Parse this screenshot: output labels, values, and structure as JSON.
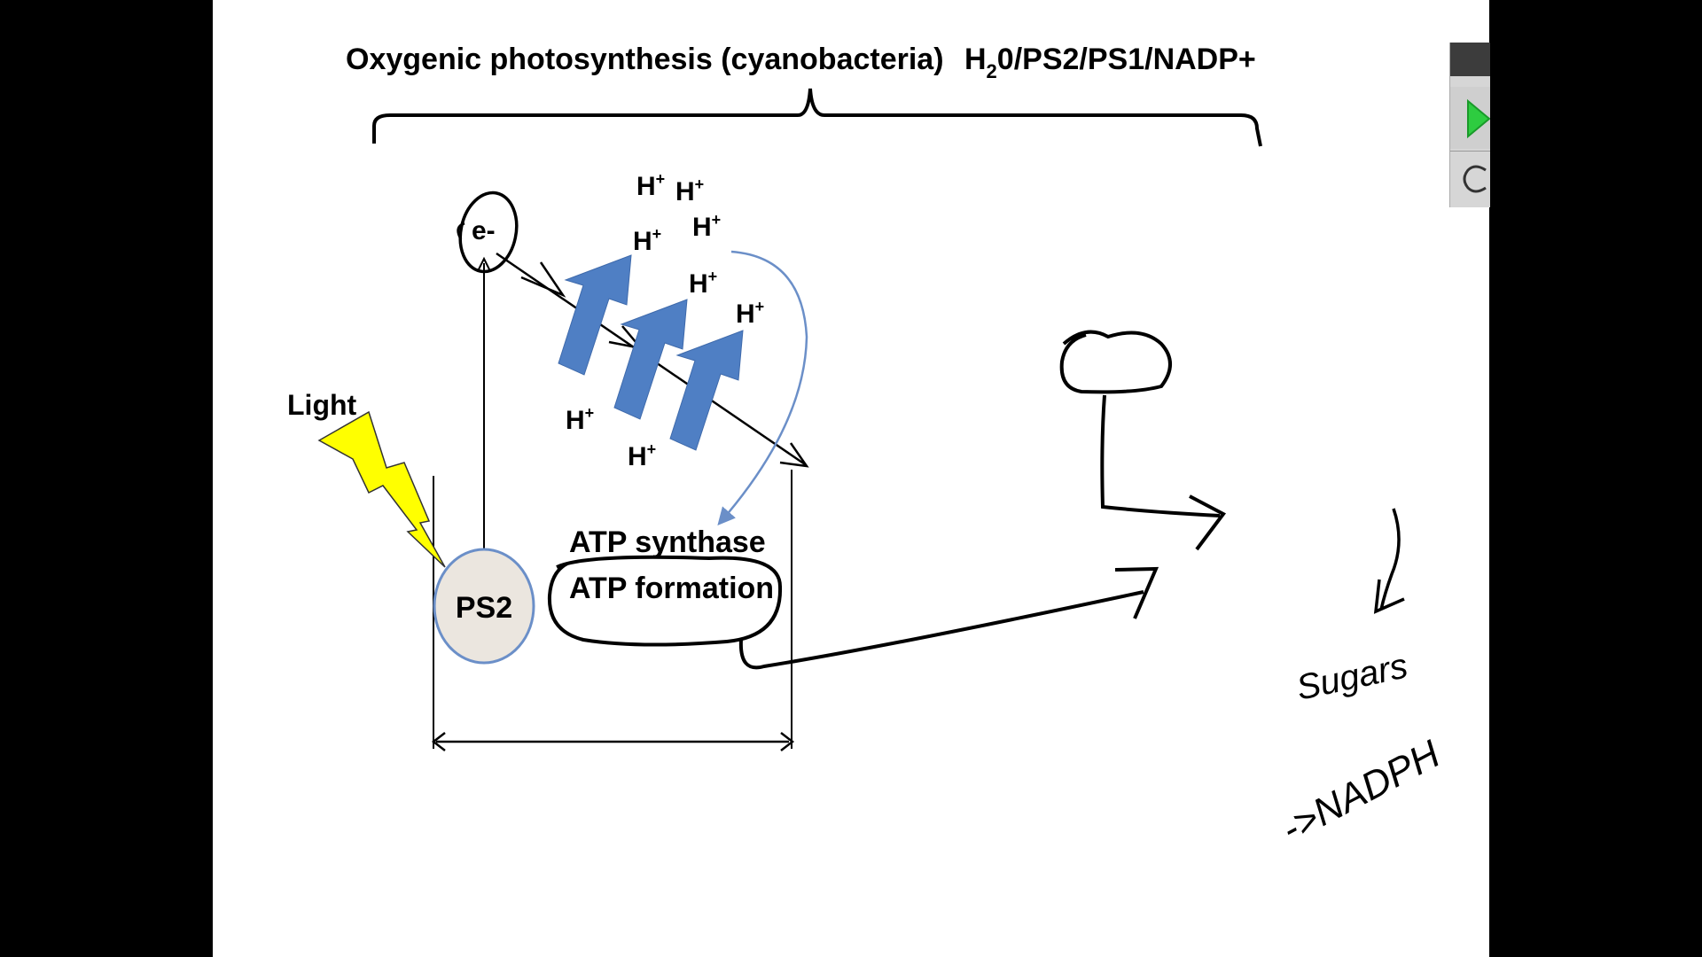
{
  "title": {
    "main": "Oxygenic photosynthesis (cyanobacteria)",
    "formula_h": "H",
    "formula_sub": "2",
    "formula_rest": "0/PS2/PS1/NADP+"
  },
  "labels": {
    "electron": "e-",
    "light": "Light",
    "ps2": "PS2",
    "atp_synthase": "ATP synthase",
    "atp_formation": "ATP formation",
    "proton": "H",
    "proton_charge": "+"
  },
  "handwriting": {
    "sugars": "Sugars",
    "nadph": "->NADPH"
  },
  "colors": {
    "background": "#000000",
    "slide": "#ffffff",
    "blue_arrow": "#4f7fc4",
    "blue_stroke": "#6b8fc8",
    "light_bolt": "#ffff00",
    "ps2_fill": "#ebe6df",
    "ink": "#000000"
  },
  "icons": {
    "play": "play-icon",
    "record": "circle-icon",
    "lightning": "lightning-bolt-icon"
  }
}
